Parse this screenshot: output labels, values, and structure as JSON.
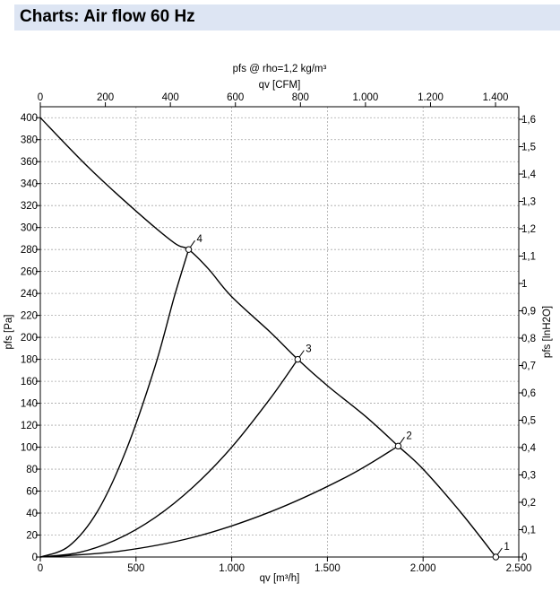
{
  "header": {
    "title": "Charts: Air flow 60 Hz"
  },
  "chart_data": {
    "type": "line",
    "title": "pfs @ rho=1,2 kg/m³",
    "xlabel": "qv [m³/h]",
    "ylabel": "pfs [Pa]",
    "x2label": "qv [CFM]",
    "y2label": "pfs [InH2O]",
    "xlim": [
      0,
      2500
    ],
    "ylim": [
      0,
      410
    ],
    "x2lim": [
      0,
      1471.5
    ],
    "y2lim": [
      0,
      1.646
    ],
    "xticks": [
      0,
      500,
      1000,
      1500,
      2000,
      2500
    ],
    "xtick_labels": [
      "0",
      "500",
      "1.000",
      "1.500",
      "2.000",
      "2.500"
    ],
    "yticks": [
      0,
      20,
      40,
      60,
      80,
      100,
      120,
      140,
      160,
      180,
      200,
      220,
      240,
      260,
      280,
      300,
      320,
      340,
      360,
      380,
      400
    ],
    "ytick_labels": [
      "0",
      "20",
      "40",
      "60",
      "80",
      "100",
      "120",
      "140",
      "160",
      "180",
      "200",
      "220",
      "240",
      "260",
      "280",
      "300",
      "320",
      "340",
      "360",
      "380",
      "400"
    ],
    "x2ticks": [
      0,
      200,
      400,
      600,
      800,
      1000,
      1200,
      1400
    ],
    "x2tick_labels": [
      "0",
      "200",
      "400",
      "600",
      "800",
      "1.000",
      "1.200",
      "1.400"
    ],
    "y2ticks": [
      0,
      0.1,
      0.2,
      0.3,
      0.4,
      0.5,
      0.6,
      0.7,
      0.8,
      0.9,
      1.0,
      1.1,
      1.2,
      1.3,
      1.4,
      1.5,
      1.6
    ],
    "y2tick_labels": [
      "0",
      "0,1",
      "0,2",
      "0,3",
      "0,4",
      "0,5",
      "0,6",
      "0,7",
      "0,8",
      "0,9",
      "1",
      "1,1",
      "1,2",
      "1,3",
      "1,4",
      "1,5",
      "1,6"
    ],
    "grid": true,
    "series": [
      {
        "kind": "fan_curve",
        "x": [
          0,
          250,
          500,
          700,
          775,
          880,
          1000,
          1200,
          1345,
          1500,
          1700,
          1870,
          2000,
          2200,
          2380
        ],
        "y": [
          400,
          355,
          315,
          286,
          280,
          262,
          237,
          205,
          180,
          156,
          128,
          101,
          80,
          40,
          0
        ]
      },
      {
        "kind": "system_curve",
        "x": [
          0,
          150,
          300,
          450,
          600,
          700,
          775
        ],
        "y": [
          0,
          10,
          42,
          98,
          174,
          237,
          280
        ]
      },
      {
        "kind": "system_curve",
        "x": [
          0,
          200,
          400,
          600,
          800,
          1000,
          1200,
          1345
        ],
        "y": [
          0,
          4,
          16,
          36,
          64,
          100,
          144,
          180
        ]
      },
      {
        "kind": "system_curve",
        "x": [
          0,
          400,
          800,
          1200,
          1600,
          1870
        ],
        "y": [
          0,
          5,
          18,
          41,
          73,
          101
        ]
      }
    ],
    "operating_points": [
      {
        "label": "1",
        "x": 2380,
        "y": 0
      },
      {
        "label": "2",
        "x": 1870,
        "y": 101
      },
      {
        "label": "3",
        "x": 1345,
        "y": 180
      },
      {
        "label": "4",
        "x": 775,
        "y": 280
      }
    ]
  }
}
